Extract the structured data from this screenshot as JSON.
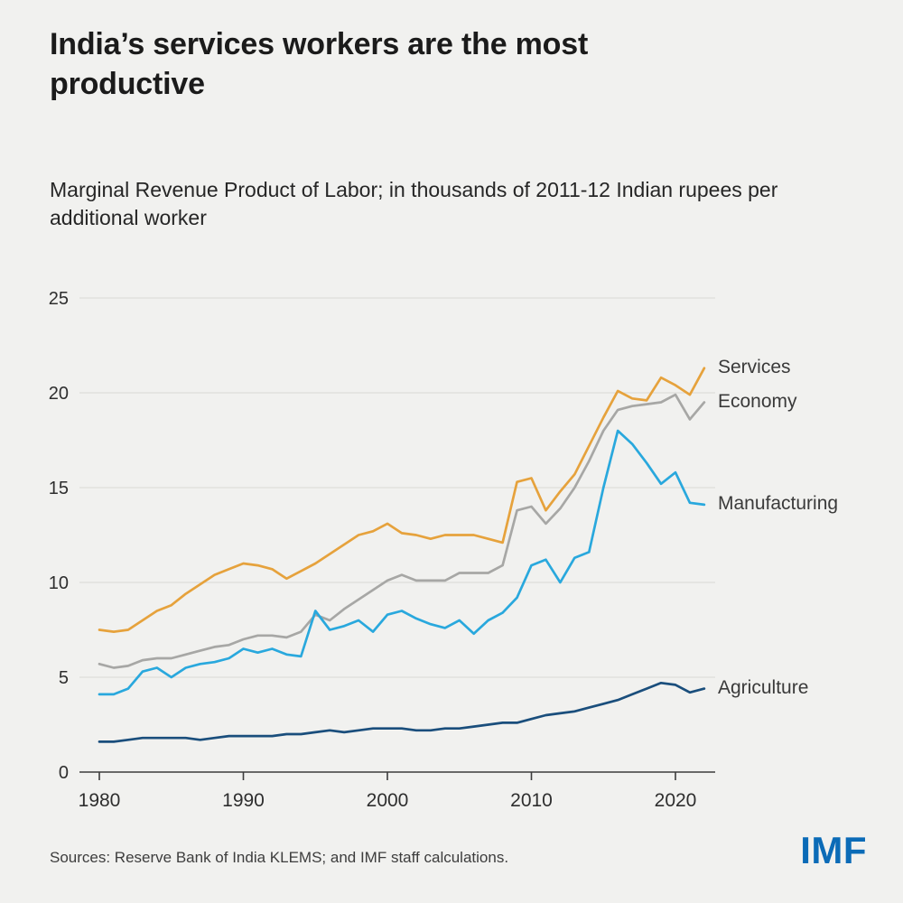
{
  "header": {
    "title": "India’s services workers are the most productive",
    "subtitle": "Marginal Revenue Product of Labor; in thousands of 2011-12 Indian rupees per additional worker"
  },
  "footer": {
    "source": "Sources: Reserve Bank of India KLEMS; and IMF staff calculations.",
    "logo": "IMF",
    "logo_color": "#0b6bb7"
  },
  "chart_data": {
    "type": "line",
    "title": "India’s services workers are the most productive",
    "subtitle": "Marginal Revenue Product of Labor; in thousands of 2011-12 Indian rupees per additional worker",
    "x": [
      1980,
      1981,
      1982,
      1983,
      1984,
      1985,
      1986,
      1987,
      1988,
      1989,
      1990,
      1991,
      1992,
      1993,
      1994,
      1995,
      1996,
      1997,
      1998,
      1999,
      2000,
      2001,
      2002,
      2003,
      2004,
      2005,
      2006,
      2007,
      2008,
      2009,
      2010,
      2011,
      2012,
      2013,
      2014,
      2015,
      2016,
      2017,
      2018,
      2019,
      2020,
      2021,
      2022
    ],
    "x_ticks": [
      1980,
      1990,
      2000,
      2010,
      2020
    ],
    "y_ticks": [
      0,
      5,
      10,
      15,
      20,
      25
    ],
    "ylim": [
      0,
      25
    ],
    "grid": "horizontal-only",
    "legend_position": "right-of-line-ends",
    "background": "#f1f1ef",
    "grid_color": "#d9d9d6",
    "axis_color": "#3c3c3c",
    "series": [
      {
        "id": "services",
        "name": "Services",
        "color": "#e6a23c",
        "values": [
          7.5,
          7.4,
          7.5,
          8.0,
          8.5,
          8.8,
          9.4,
          9.9,
          10.4,
          10.7,
          11.0,
          10.9,
          10.7,
          10.2,
          10.6,
          11.0,
          11.5,
          12.0,
          12.5,
          12.7,
          13.1,
          12.6,
          12.5,
          12.3,
          12.5,
          12.5,
          12.5,
          12.3,
          12.1,
          15.3,
          15.5,
          13.8,
          14.8,
          15.7,
          17.2,
          18.7,
          20.1,
          19.7,
          19.6,
          20.8,
          20.4,
          19.9,
          21.3
        ]
      },
      {
        "id": "economy",
        "name": "Economy",
        "color": "#a7a7a5",
        "values": [
          5.7,
          5.5,
          5.6,
          5.9,
          6.0,
          6.0,
          6.2,
          6.4,
          6.6,
          6.7,
          7.0,
          7.2,
          7.2,
          7.1,
          7.4,
          8.3,
          8.0,
          8.6,
          9.1,
          9.6,
          10.1,
          10.4,
          10.1,
          10.1,
          10.1,
          10.5,
          10.5,
          10.5,
          10.9,
          13.8,
          14.0,
          13.1,
          13.9,
          15.0,
          16.4,
          18.0,
          19.1,
          19.3,
          19.4,
          19.5,
          19.9,
          18.6,
          19.5
        ]
      },
      {
        "id": "manufacturing",
        "name": "Manufacturing",
        "color": "#29a8dd",
        "values": [
          4.1,
          4.1,
          4.4,
          5.3,
          5.5,
          5.0,
          5.5,
          5.7,
          5.8,
          6.0,
          6.5,
          6.3,
          6.5,
          6.2,
          6.1,
          8.5,
          7.5,
          7.7,
          8.0,
          7.4,
          8.3,
          8.5,
          8.1,
          7.8,
          7.6,
          8.0,
          7.3,
          8.0,
          8.4,
          9.2,
          10.9,
          11.2,
          10.0,
          11.3,
          11.6,
          15.0,
          18.0,
          17.3,
          16.3,
          15.2,
          15.8,
          14.2,
          14.1
        ]
      },
      {
        "id": "agriculture",
        "name": "Agriculture",
        "color": "#1a4e7c",
        "values": [
          1.6,
          1.6,
          1.7,
          1.8,
          1.8,
          1.8,
          1.8,
          1.7,
          1.8,
          1.9,
          1.9,
          1.9,
          1.9,
          2.0,
          2.0,
          2.1,
          2.2,
          2.1,
          2.2,
          2.3,
          2.3,
          2.3,
          2.2,
          2.2,
          2.3,
          2.3,
          2.4,
          2.5,
          2.6,
          2.6,
          2.8,
          3.0,
          3.1,
          3.2,
          3.4,
          3.6,
          3.8,
          4.1,
          4.4,
          4.7,
          4.6,
          4.2,
          4.4
        ]
      }
    ]
  }
}
